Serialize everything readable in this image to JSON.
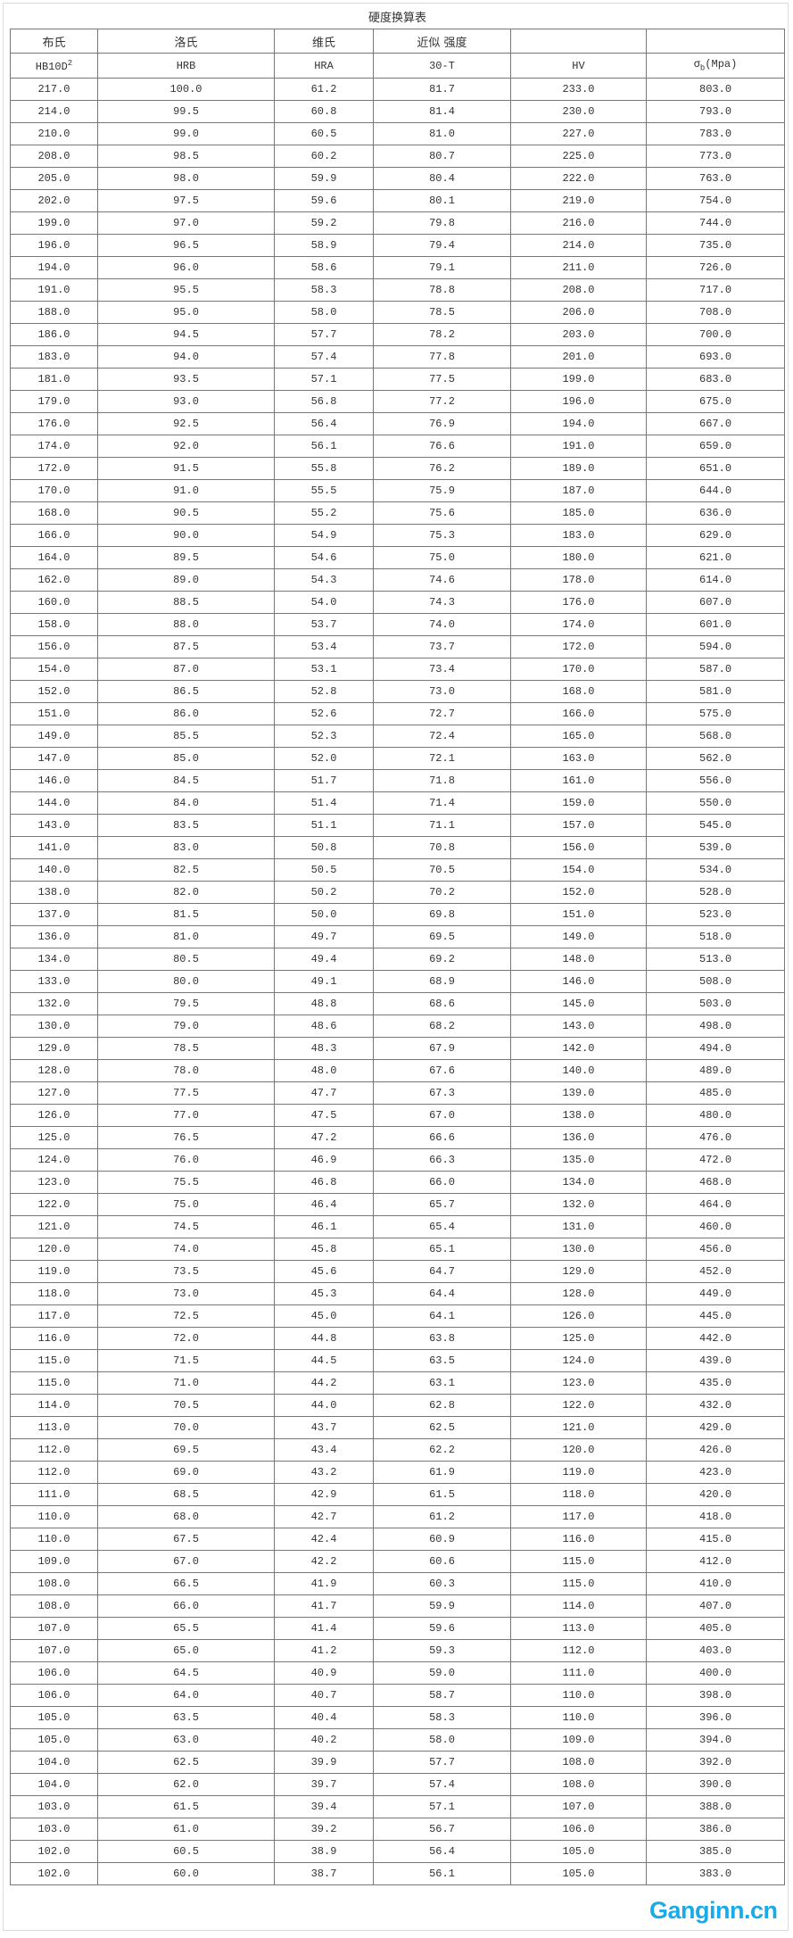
{
  "title": "硬度换算表",
  "group_headers": [
    "布氏",
    "洛氏",
    "维氏",
    "近似 强度",
    "",
    ""
  ],
  "unit_headers": {
    "hb": "HB10D",
    "hb_sup": "2",
    "hrb": "HRB",
    "hra": "HRA",
    "t30": "30-T",
    "hv": "HV",
    "sigma": "σ",
    "sigma_sub": "b",
    "sigma_unit": "(Mpa)"
  },
  "rows": [
    [
      "217.0",
      "100.0",
      "61.2",
      "81.7",
      "233.0",
      "803.0"
    ],
    [
      "214.0",
      "99.5",
      "60.8",
      "81.4",
      "230.0",
      "793.0"
    ],
    [
      "210.0",
      "99.0",
      "60.5",
      "81.0",
      "227.0",
      "783.0"
    ],
    [
      "208.0",
      "98.5",
      "60.2",
      "80.7",
      "225.0",
      "773.0"
    ],
    [
      "205.0",
      "98.0",
      "59.9",
      "80.4",
      "222.0",
      "763.0"
    ],
    [
      "202.0",
      "97.5",
      "59.6",
      "80.1",
      "219.0",
      "754.0"
    ],
    [
      "199.0",
      "97.0",
      "59.2",
      "79.8",
      "216.0",
      "744.0"
    ],
    [
      "196.0",
      "96.5",
      "58.9",
      "79.4",
      "214.0",
      "735.0"
    ],
    [
      "194.0",
      "96.0",
      "58.6",
      "79.1",
      "211.0",
      "726.0"
    ],
    [
      "191.0",
      "95.5",
      "58.3",
      "78.8",
      "208.0",
      "717.0"
    ],
    [
      "188.0",
      "95.0",
      "58.0",
      "78.5",
      "206.0",
      "708.0"
    ],
    [
      "186.0",
      "94.5",
      "57.7",
      "78.2",
      "203.0",
      "700.0"
    ],
    [
      "183.0",
      "94.0",
      "57.4",
      "77.8",
      "201.0",
      "693.0"
    ],
    [
      "181.0",
      "93.5",
      "57.1",
      "77.5",
      "199.0",
      "683.0"
    ],
    [
      "179.0",
      "93.0",
      "56.8",
      "77.2",
      "196.0",
      "675.0"
    ],
    [
      "176.0",
      "92.5",
      "56.4",
      "76.9",
      "194.0",
      "667.0"
    ],
    [
      "174.0",
      "92.0",
      "56.1",
      "76.6",
      "191.0",
      "659.0"
    ],
    [
      "172.0",
      "91.5",
      "55.8",
      "76.2",
      "189.0",
      "651.0"
    ],
    [
      "170.0",
      "91.0",
      "55.5",
      "75.9",
      "187.0",
      "644.0"
    ],
    [
      "168.0",
      "90.5",
      "55.2",
      "75.6",
      "185.0",
      "636.0"
    ],
    [
      "166.0",
      "90.0",
      "54.9",
      "75.3",
      "183.0",
      "629.0"
    ],
    [
      "164.0",
      "89.5",
      "54.6",
      "75.0",
      "180.0",
      "621.0"
    ],
    [
      "162.0",
      "89.0",
      "54.3",
      "74.6",
      "178.0",
      "614.0"
    ],
    [
      "160.0",
      "88.5",
      "54.0",
      "74.3",
      "176.0",
      "607.0"
    ],
    [
      "158.0",
      "88.0",
      "53.7",
      "74.0",
      "174.0",
      "601.0"
    ],
    [
      "156.0",
      "87.5",
      "53.4",
      "73.7",
      "172.0",
      "594.0"
    ],
    [
      "154.0",
      "87.0",
      "53.1",
      "73.4",
      "170.0",
      "587.0"
    ],
    [
      "152.0",
      "86.5",
      "52.8",
      "73.0",
      "168.0",
      "581.0"
    ],
    [
      "151.0",
      "86.0",
      "52.6",
      "72.7",
      "166.0",
      "575.0"
    ],
    [
      "149.0",
      "85.5",
      "52.3",
      "72.4",
      "165.0",
      "568.0"
    ],
    [
      "147.0",
      "85.0",
      "52.0",
      "72.1",
      "163.0",
      "562.0"
    ],
    [
      "146.0",
      "84.5",
      "51.7",
      "71.8",
      "161.0",
      "556.0"
    ],
    [
      "144.0",
      "84.0",
      "51.4",
      "71.4",
      "159.0",
      "550.0"
    ],
    [
      "143.0",
      "83.5",
      "51.1",
      "71.1",
      "157.0",
      "545.0"
    ],
    [
      "141.0",
      "83.0",
      "50.8",
      "70.8",
      "156.0",
      "539.0"
    ],
    [
      "140.0",
      "82.5",
      "50.5",
      "70.5",
      "154.0",
      "534.0"
    ],
    [
      "138.0",
      "82.0",
      "50.2",
      "70.2",
      "152.0",
      "528.0"
    ],
    [
      "137.0",
      "81.5",
      "50.0",
      "69.8",
      "151.0",
      "523.0"
    ],
    [
      "136.0",
      "81.0",
      "49.7",
      "69.5",
      "149.0",
      "518.0"
    ],
    [
      "134.0",
      "80.5",
      "49.4",
      "69.2",
      "148.0",
      "513.0"
    ],
    [
      "133.0",
      "80.0",
      "49.1",
      "68.9",
      "146.0",
      "508.0"
    ],
    [
      "132.0",
      "79.5",
      "48.8",
      "68.6",
      "145.0",
      "503.0"
    ],
    [
      "130.0",
      "79.0",
      "48.6",
      "68.2",
      "143.0",
      "498.0"
    ],
    [
      "129.0",
      "78.5",
      "48.3",
      "67.9",
      "142.0",
      "494.0"
    ],
    [
      "128.0",
      "78.0",
      "48.0",
      "67.6",
      "140.0",
      "489.0"
    ],
    [
      "127.0",
      "77.5",
      "47.7",
      "67.3",
      "139.0",
      "485.0"
    ],
    [
      "126.0",
      "77.0",
      "47.5",
      "67.0",
      "138.0",
      "480.0"
    ],
    [
      "125.0",
      "76.5",
      "47.2",
      "66.6",
      "136.0",
      "476.0"
    ],
    [
      "124.0",
      "76.0",
      "46.9",
      "66.3",
      "135.0",
      "472.0"
    ],
    [
      "123.0",
      "75.5",
      "46.8",
      "66.0",
      "134.0",
      "468.0"
    ],
    [
      "122.0",
      "75.0",
      "46.4",
      "65.7",
      "132.0",
      "464.0"
    ],
    [
      "121.0",
      "74.5",
      "46.1",
      "65.4",
      "131.0",
      "460.0"
    ],
    [
      "120.0",
      "74.0",
      "45.8",
      "65.1",
      "130.0",
      "456.0"
    ],
    [
      "119.0",
      "73.5",
      "45.6",
      "64.7",
      "129.0",
      "452.0"
    ],
    [
      "118.0",
      "73.0",
      "45.3",
      "64.4",
      "128.0",
      "449.0"
    ],
    [
      "117.0",
      "72.5",
      "45.0",
      "64.1",
      "126.0",
      "445.0"
    ],
    [
      "116.0",
      "72.0",
      "44.8",
      "63.8",
      "125.0",
      "442.0"
    ],
    [
      "115.0",
      "71.5",
      "44.5",
      "63.5",
      "124.0",
      "439.0"
    ],
    [
      "115.0",
      "71.0",
      "44.2",
      "63.1",
      "123.0",
      "435.0"
    ],
    [
      "114.0",
      "70.5",
      "44.0",
      "62.8",
      "122.0",
      "432.0"
    ],
    [
      "113.0",
      "70.0",
      "43.7",
      "62.5",
      "121.0",
      "429.0"
    ],
    [
      "112.0",
      "69.5",
      "43.4",
      "62.2",
      "120.0",
      "426.0"
    ],
    [
      "112.0",
      "69.0",
      "43.2",
      "61.9",
      "119.0",
      "423.0"
    ],
    [
      "111.0",
      "68.5",
      "42.9",
      "61.5",
      "118.0",
      "420.0"
    ],
    [
      "110.0",
      "68.0",
      "42.7",
      "61.2",
      "117.0",
      "418.0"
    ],
    [
      "110.0",
      "67.5",
      "42.4",
      "60.9",
      "116.0",
      "415.0"
    ],
    [
      "109.0",
      "67.0",
      "42.2",
      "60.6",
      "115.0",
      "412.0"
    ],
    [
      "108.0",
      "66.5",
      "41.9",
      "60.3",
      "115.0",
      "410.0"
    ],
    [
      "108.0",
      "66.0",
      "41.7",
      "59.9",
      "114.0",
      "407.0"
    ],
    [
      "107.0",
      "65.5",
      "41.4",
      "59.6",
      "113.0",
      "405.0"
    ],
    [
      "107.0",
      "65.0",
      "41.2",
      "59.3",
      "112.0",
      "403.0"
    ],
    [
      "106.0",
      "64.5",
      "40.9",
      "59.0",
      "111.0",
      "400.0"
    ],
    [
      "106.0",
      "64.0",
      "40.7",
      "58.7",
      "110.0",
      "398.0"
    ],
    [
      "105.0",
      "63.5",
      "40.4",
      "58.3",
      "110.0",
      "396.0"
    ],
    [
      "105.0",
      "63.0",
      "40.2",
      "58.0",
      "109.0",
      "394.0"
    ],
    [
      "104.0",
      "62.5",
      "39.9",
      "57.7",
      "108.0",
      "392.0"
    ],
    [
      "104.0",
      "62.0",
      "39.7",
      "57.4",
      "108.0",
      "390.0"
    ],
    [
      "103.0",
      "61.5",
      "39.4",
      "57.1",
      "107.0",
      "388.0"
    ],
    [
      "103.0",
      "61.0",
      "39.2",
      "56.7",
      "106.0",
      "386.0"
    ],
    [
      "102.0",
      "60.5",
      "38.9",
      "56.4",
      "105.0",
      "385.0"
    ],
    [
      "102.0",
      "60.0",
      "38.7",
      "56.1",
      "105.0",
      "383.0"
    ]
  ],
  "watermark": "Ganginn.cn",
  "colors": {
    "watermark": "#19aaea",
    "border": "#777777"
  }
}
